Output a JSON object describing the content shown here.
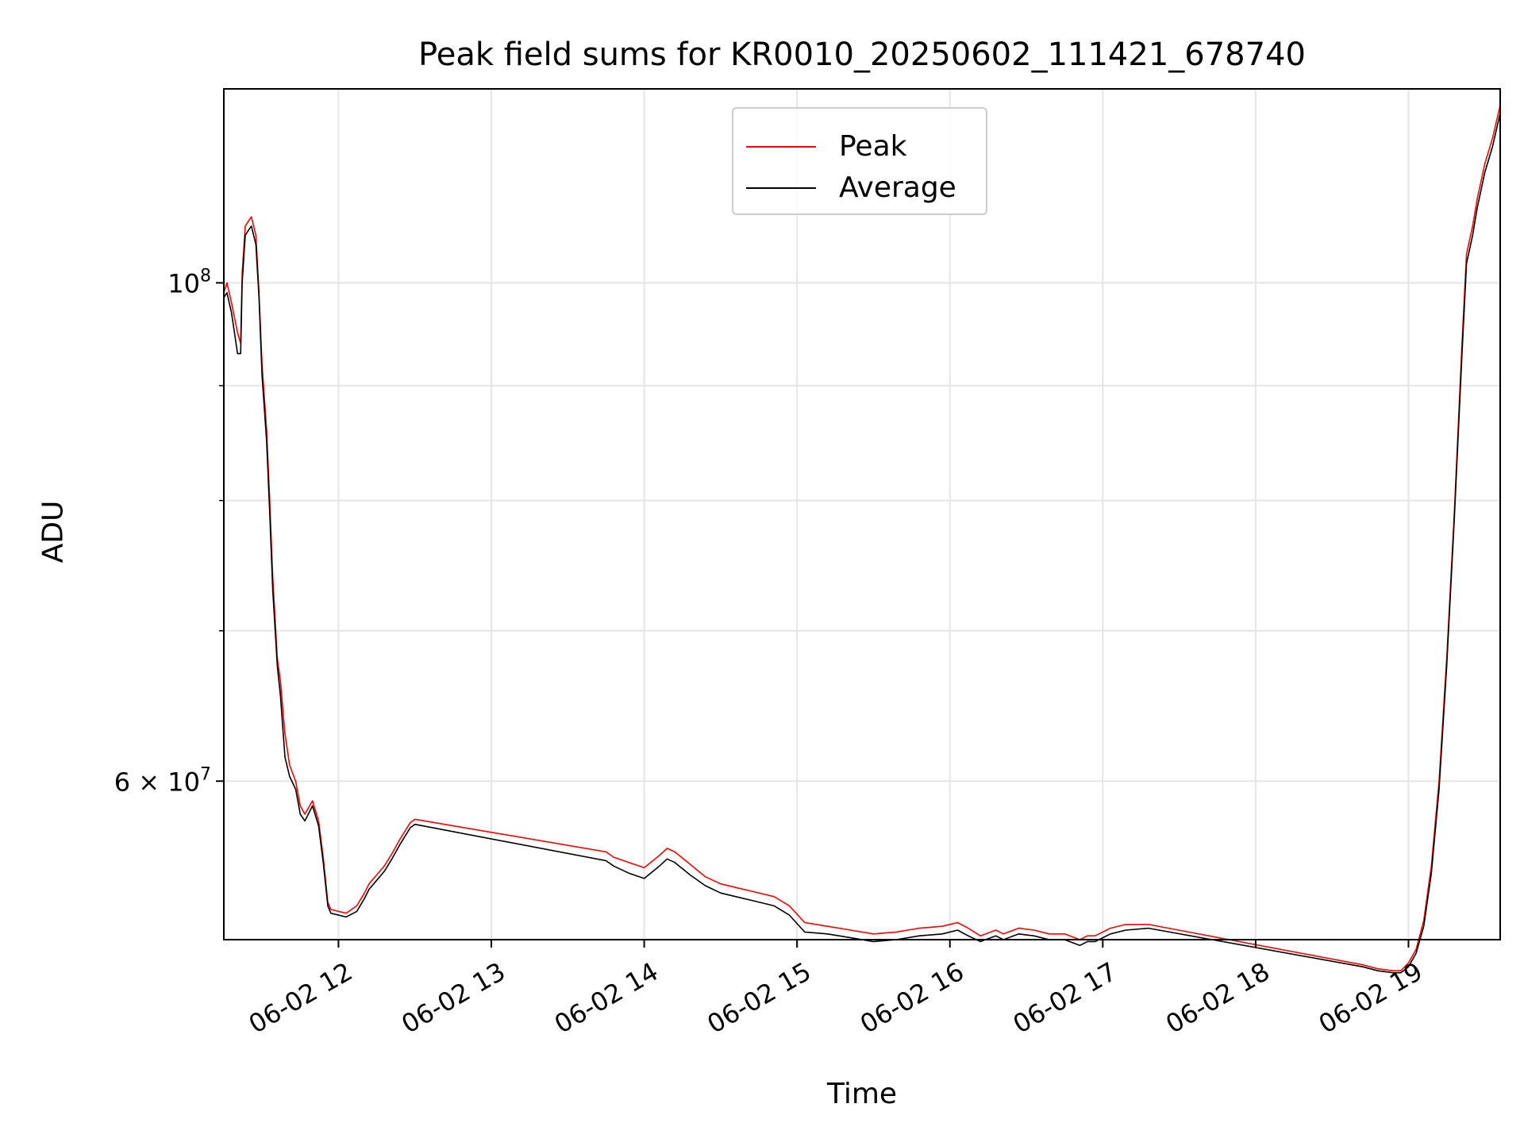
{
  "chart_data": {
    "type": "line",
    "title": "Peak field sums for KR0010_20250602_111421_678740",
    "xlabel": "Time",
    "ylabel": "ADU",
    "x_unit": "hour of day (2025-06-02)",
    "xlim": [
      11.25,
      19.6
    ],
    "ylim": [
      51000000,
      122000000
    ],
    "yscale": "log",
    "grid": true,
    "legend_position": "upper center",
    "x_ticks": [
      {
        "value": 12,
        "label": "06-02 12"
      },
      {
        "value": 13,
        "label": "06-02 13"
      },
      {
        "value": 14,
        "label": "06-02 14"
      },
      {
        "value": 15,
        "label": "06-02 15"
      },
      {
        "value": 16,
        "label": "06-02 16"
      },
      {
        "value": 17,
        "label": "06-02 17"
      },
      {
        "value": 18,
        "label": "06-02 18"
      },
      {
        "value": 19,
        "label": "06-02 19"
      }
    ],
    "y_major_ticks": [
      {
        "value": 100000000,
        "label": "10^8"
      },
      {
        "value": 60000000,
        "label": "6 × 10^7"
      }
    ],
    "y_minor_ticks": [
      50000000,
      70000000,
      80000000,
      90000000
    ],
    "series": [
      {
        "name": "Peak",
        "color": "#ff0000",
        "x": [
          11.25,
          11.27,
          11.3,
          11.34,
          11.36,
          11.37,
          11.39,
          11.41,
          11.43,
          11.46,
          11.48,
          11.5,
          11.53,
          11.55,
          11.57,
          11.6,
          11.62,
          11.65,
          11.68,
          11.72,
          11.75,
          11.78,
          11.83,
          11.87,
          11.9,
          11.93,
          11.95,
          12.05,
          12.12,
          12.17,
          12.2,
          12.25,
          12.3,
          12.35,
          12.4,
          12.47,
          12.5,
          13.75,
          13.8,
          13.9,
          14.0,
          14.1,
          14.15,
          14.2,
          14.3,
          14.4,
          14.5,
          14.6,
          14.7,
          14.85,
          14.95,
          15.05,
          15.2,
          15.35,
          15.5,
          15.65,
          15.8,
          15.95,
          16.05,
          16.12,
          16.2,
          16.3,
          16.35,
          16.45,
          16.55,
          16.65,
          16.75,
          16.85,
          16.9,
          16.95,
          17.05,
          17.15,
          17.3,
          18.7,
          18.8,
          18.9,
          18.95,
          19.0,
          19.05,
          19.1,
          19.15,
          19.2,
          19.25,
          19.3,
          19.35,
          19.38,
          19.42,
          19.45,
          19.5,
          19.55,
          19.6
        ],
        "y": [
          99000000,
          100000000,
          98000000,
          95000000,
          94000000,
          101000000,
          106000000,
          106500000,
          107000000,
          105000000,
          99000000,
          92000000,
          86000000,
          80000000,
          74000000,
          68000000,
          66500000,
          63000000,
          61000000,
          60000000,
          58500000,
          58000000,
          58800000,
          57600000,
          55500000,
          53000000,
          52600000,
          52400000,
          52800000,
          53500000,
          54000000,
          54500000,
          55000000,
          55700000,
          56500000,
          57500000,
          57700000,
          55800000,
          55500000,
          55200000,
          54900000,
          55600000,
          56000000,
          55800000,
          55100000,
          54400000,
          54000000,
          53800000,
          53600000,
          53300000,
          52800000,
          51900000,
          51700000,
          51500000,
          51300000,
          51400000,
          51600000,
          51700000,
          51900000,
          51600000,
          51200000,
          51500000,
          51300000,
          51600000,
          51500000,
          51300000,
          51300000,
          51000000,
          51200000,
          51200000,
          51600000,
          51800000,
          51800000,
          49700000,
          49500000,
          49400000,
          49400000,
          49800000,
          50500000,
          52000000,
          55000000,
          60000000,
          68000000,
          79000000,
          94000000,
          103000000,
          106000000,
          109000000,
          113000000,
          116000000,
          120000000
        ]
      },
      {
        "name": "Average",
        "color": "#000000",
        "x": [
          11.25,
          11.27,
          11.3,
          11.34,
          11.36,
          11.37,
          11.39,
          11.41,
          11.43,
          11.46,
          11.48,
          11.5,
          11.53,
          11.55,
          11.57,
          11.6,
          11.62,
          11.65,
          11.68,
          11.72,
          11.75,
          11.78,
          11.83,
          11.87,
          11.9,
          11.93,
          11.95,
          12.05,
          12.12,
          12.17,
          12.2,
          12.25,
          12.3,
          12.35,
          12.4,
          12.47,
          12.5,
          13.75,
          13.8,
          13.9,
          14.0,
          14.1,
          14.15,
          14.2,
          14.3,
          14.4,
          14.5,
          14.6,
          14.7,
          14.85,
          14.95,
          15.05,
          15.2,
          15.35,
          15.5,
          15.65,
          15.8,
          15.95,
          16.05,
          16.12,
          16.2,
          16.3,
          16.35,
          16.45,
          16.55,
          16.65,
          16.75,
          16.85,
          16.9,
          16.95,
          17.05,
          17.15,
          17.3,
          18.7,
          18.8,
          18.9,
          18.95,
          19.0,
          19.05,
          19.1,
          19.15,
          19.2,
          19.25,
          19.3,
          19.35,
          19.38,
          19.42,
          19.45,
          19.5,
          19.55,
          19.6
        ],
        "y": [
          98500000,
          99000000,
          97000000,
          93000000,
          93000000,
          100000000,
          105000000,
          105500000,
          106000000,
          104000000,
          98500000,
          91000000,
          85000000,
          79000000,
          73000000,
          67500000,
          65500000,
          61500000,
          60300000,
          59500000,
          58000000,
          57600000,
          58500000,
          57300000,
          55200000,
          52800000,
          52400000,
          52200000,
          52500000,
          53200000,
          53700000,
          54200000,
          54700000,
          55400000,
          56200000,
          57200000,
          57400000,
          55300000,
          55000000,
          54600000,
          54300000,
          55000000,
          55400000,
          55200000,
          54500000,
          53900000,
          53500000,
          53300000,
          53100000,
          52800000,
          52300000,
          51400000,
          51300000,
          51100000,
          50900000,
          51000000,
          51200000,
          51300000,
          51500000,
          51200000,
          50900000,
          51200000,
          51000000,
          51300000,
          51200000,
          51000000,
          51000000,
          50700000,
          50900000,
          50900000,
          51300000,
          51500000,
          51600000,
          49600000,
          49400000,
          49300000,
          49300000,
          49600000,
          50300000,
          51700000,
          54600000,
          59500000,
          67500000,
          78500000,
          93000000,
          102000000,
          105000000,
          108000000,
          112000000,
          115000000,
          119000000
        ]
      }
    ]
  }
}
